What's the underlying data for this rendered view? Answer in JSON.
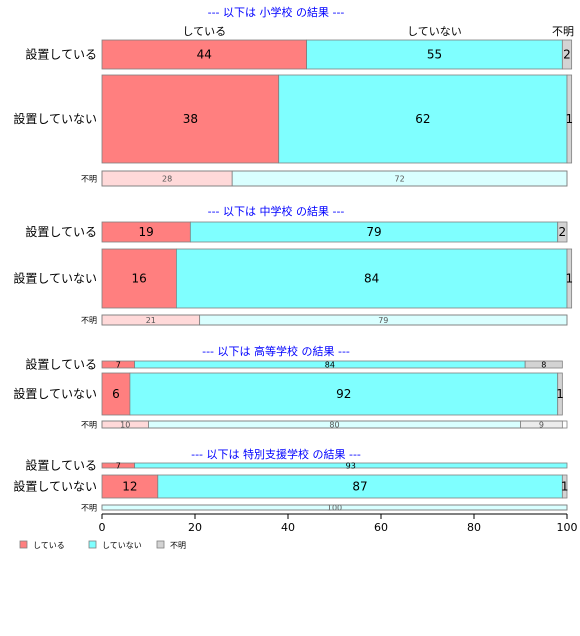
{
  "chart_data": {
    "type": "bar",
    "orientation": "horizontal",
    "stacked": true,
    "percent": true,
    "xlim": [
      0,
      100
    ],
    "xticks": [
      0,
      20,
      40,
      60,
      80,
      100
    ],
    "series_colors": {
      "している": "#ff7f7f",
      "していない": "#7fffff",
      "不明": "#d3d3d3"
    },
    "legend": {
      "placement": "bottom-left",
      "entries": [
        "している",
        "していない",
        "不明"
      ]
    },
    "column_headers": [
      "している",
      "していない",
      "不明"
    ],
    "panels": [
      {
        "title": "--- 以下は 小学校 の結果 ---",
        "rows": [
          {
            "label": "設置している",
            "values": [
              44,
              55,
              2
            ]
          },
          {
            "label": "設置していない",
            "values": [
              38,
              62,
              1
            ]
          },
          {
            "label": "不明",
            "small": true,
            "values": [
              28,
              72,
              0
            ]
          }
        ]
      },
      {
        "title": "--- 以下は 中学校 の結果 ---",
        "rows": [
          {
            "label": "設置している",
            "values": [
              19,
              79,
              2
            ]
          },
          {
            "label": "設置していない",
            "values": [
              16,
              84,
              1
            ]
          },
          {
            "label": "不明",
            "small": true,
            "values": [
              21,
              79,
              0
            ]
          }
        ]
      },
      {
        "title": "--- 以下は 高等学校 の結果 ---",
        "rows": [
          {
            "label": "設置している",
            "values": [
              7,
              84,
              8
            ]
          },
          {
            "label": "設置していない",
            "values": [
              6,
              92,
              1
            ]
          },
          {
            "label": "不明",
            "small": true,
            "values": [
              10,
              80,
              9
            ]
          }
        ]
      },
      {
        "title": "--- 以下は 特別支援学校 の結果 ---",
        "rows": [
          {
            "label": "設置している",
            "values": [
              7,
              93,
              0
            ]
          },
          {
            "label": "設置していない",
            "values": [
              12,
              87,
              1
            ]
          },
          {
            "label": "不明",
            "small": true,
            "values": [
              0,
              100,
              0
            ]
          }
        ]
      }
    ]
  }
}
